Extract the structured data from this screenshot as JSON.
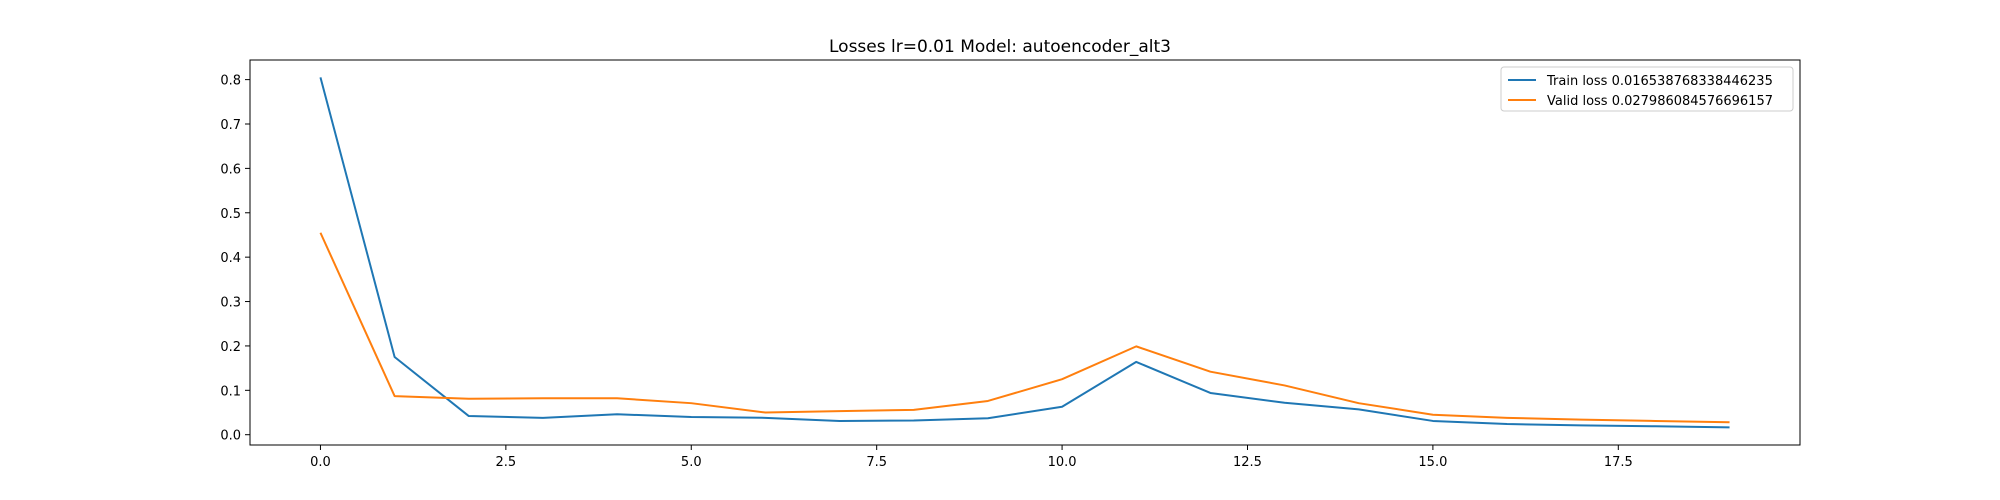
{
  "chart_data": {
    "type": "line",
    "title": "Losses lr=0.01 Model: autoencoder_alt3",
    "xlabel": "",
    "ylabel": "",
    "xlim": [
      -0.95,
      19.95
    ],
    "ylim": [
      -0.0232,
      0.8442
    ],
    "x_ticks": [
      0.0,
      2.5,
      5.0,
      7.5,
      10.0,
      12.5,
      15.0,
      17.5
    ],
    "x_tick_labels": [
      "0.0",
      "2.5",
      "5.0",
      "7.5",
      "10.0",
      "12.5",
      "15.0",
      "17.5"
    ],
    "y_ticks": [
      0.0,
      0.1,
      0.2,
      0.3,
      0.4,
      0.5,
      0.6,
      0.7,
      0.8
    ],
    "y_tick_labels": [
      "0.0",
      "0.1",
      "0.2",
      "0.3",
      "0.4",
      "0.5",
      "0.6",
      "0.7",
      "0.8"
    ],
    "grid": false,
    "legend_position": "top-right",
    "x": [
      0,
      1,
      2,
      3,
      4,
      5,
      6,
      7,
      8,
      9,
      10,
      11,
      12,
      13,
      14,
      15,
      16,
      17,
      18,
      19
    ],
    "series": [
      {
        "name": "Train loss 0.016538768338446235",
        "color": "#1f77b4",
        "values": [
          0.805,
          0.175,
          0.042,
          0.038,
          0.046,
          0.04,
          0.038,
          0.031,
          0.032,
          0.037,
          0.063,
          0.164,
          0.094,
          0.072,
          0.057,
          0.031,
          0.024,
          0.021,
          0.019,
          0.0165
        ]
      },
      {
        "name": "Valid loss 0.027986084576696157",
        "color": "#ff7f0e",
        "values": [
          0.455,
          0.087,
          0.081,
          0.082,
          0.082,
          0.071,
          0.05,
          0.053,
          0.056,
          0.076,
          0.125,
          0.199,
          0.142,
          0.111,
          0.071,
          0.045,
          0.038,
          0.034,
          0.031,
          0.028
        ]
      }
    ]
  }
}
